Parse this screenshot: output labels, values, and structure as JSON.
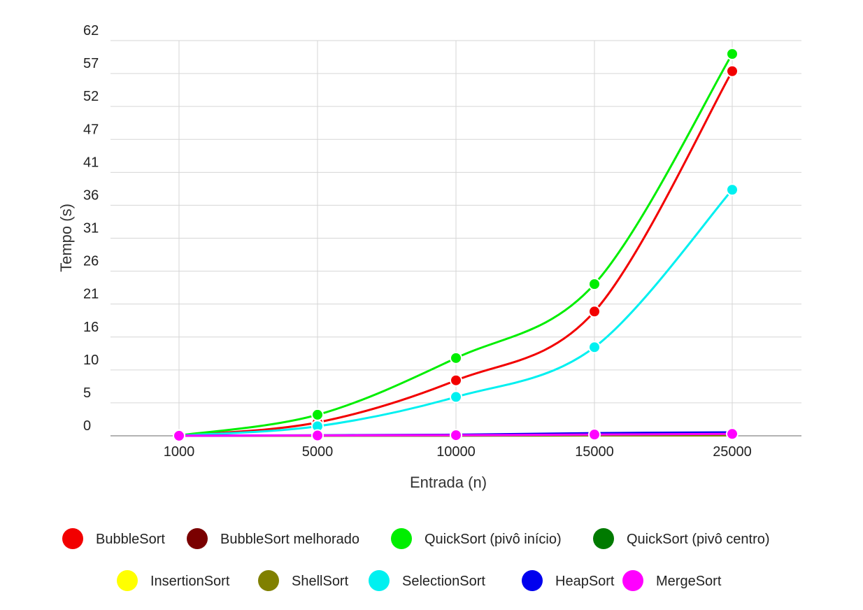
{
  "chart_data": {
    "type": "line",
    "xlabel": "Entrada (n)",
    "ylabel": "Tempo (s)",
    "categories": [
      "1000",
      "5000",
      "10000",
      "15000",
      "25000"
    ],
    "y_tick_labels": [
      "0",
      "5",
      "10",
      "16",
      "21",
      "26",
      "31",
      "36",
      "41",
      "47",
      "52",
      "57",
      "62"
    ],
    "ylim": [
      0,
      62
    ],
    "grid": true,
    "legend_position": "bottom",
    "series": [
      {
        "name": "BubbleSort",
        "color": "#f20000",
        "values": [
          0.05,
          2.1,
          8.7,
          19.5,
          57.2
        ],
        "show_points": true
      },
      {
        "name": "BubbleSort melhorado",
        "color": "#7a0000",
        "values": [
          0.02,
          0.05,
          0.1,
          0.15,
          0.25
        ],
        "show_points": false
      },
      {
        "name": "QuickSort (pivô início)",
        "color": "#00ee00",
        "values": [
          0.05,
          3.3,
          12.2,
          23.8,
          59.9
        ],
        "show_points": true
      },
      {
        "name": "QuickSort (pivô centro)",
        "color": "#007a00",
        "values": [
          0.01,
          0.02,
          0.03,
          0.05,
          0.08
        ],
        "show_points": false
      },
      {
        "name": "InsertionSort",
        "color": "#ffff00",
        "values": [
          0.01,
          0.04,
          0.08,
          0.12,
          0.2
        ],
        "show_points": false
      },
      {
        "name": "ShellSort",
        "color": "#808000",
        "values": [
          0.01,
          0.02,
          0.03,
          0.05,
          0.07
        ],
        "show_points": false
      },
      {
        "name": "SelectionSort",
        "color": "#00f0f0",
        "values": [
          0.03,
          1.5,
          6.1,
          13.9,
          38.6
        ],
        "show_points": true
      },
      {
        "name": "HeapSort",
        "color": "#0000ee",
        "values": [
          0.02,
          0.08,
          0.18,
          0.42,
          0.55
        ],
        "show_points": false
      },
      {
        "name": "MergeSort",
        "color": "#ff00ff",
        "values": [
          0.01,
          0.05,
          0.1,
          0.2,
          0.3
        ],
        "show_points": true
      }
    ]
  }
}
